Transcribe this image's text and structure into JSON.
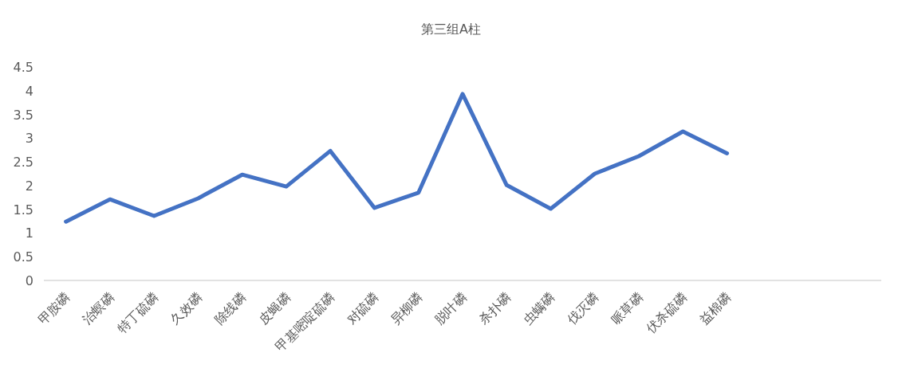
{
  "chart_data": {
    "type": "line",
    "title": "第三组A柱",
    "categories": [
      "甲胺磷",
      "治螟磷",
      "特丁硫磷",
      "久效磷",
      "除线磷",
      "皮蝇磷",
      "甲基嘧啶硫磷",
      "对硫磷",
      "异柳磷",
      "脱叶磷",
      "杀扑磷",
      "虫螨磷",
      "伐灭磷",
      "哌草磷",
      "伏杀硫磷",
      "益棉磷",
      null,
      null,
      null
    ],
    "values": [
      1.24,
      1.71,
      1.36,
      1.73,
      2.23,
      1.98,
      2.73,
      1.53,
      1.85,
      3.93,
      2.01,
      1.51,
      2.25,
      2.62,
      3.14,
      2.68,
      null,
      null,
      null
    ],
    "color": "#4472c4",
    "ylim": [
      0,
      4.5
    ],
    "yticks": [
      0,
      0.5,
      1,
      1.5,
      2,
      2.5,
      3,
      3.5,
      4,
      4.5
    ]
  }
}
